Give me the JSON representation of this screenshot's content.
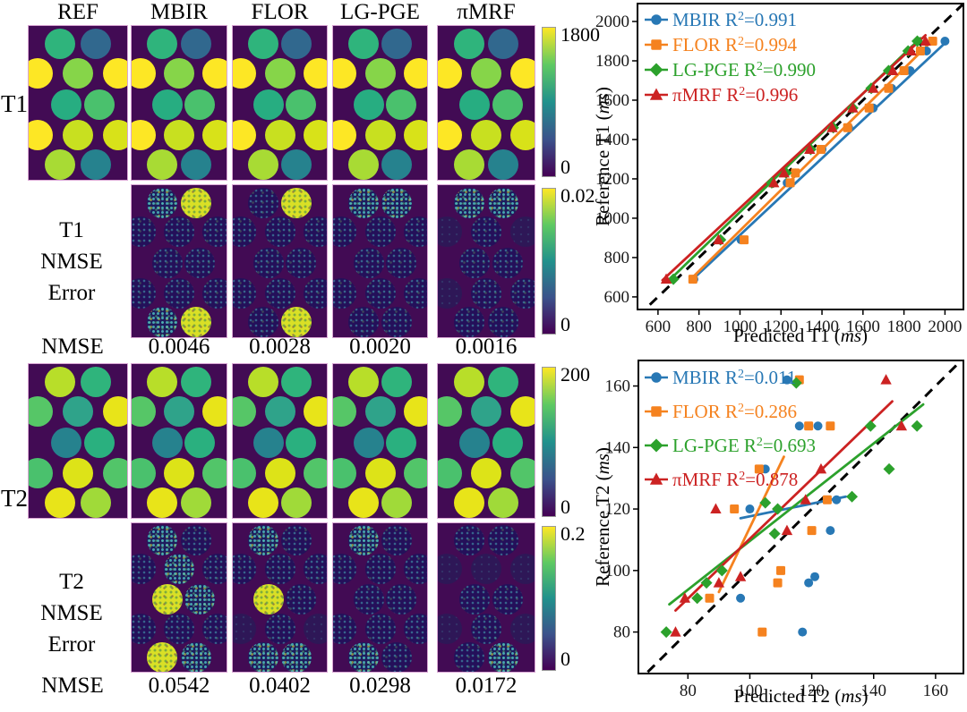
{
  "figure": {
    "col_headers": [
      "REF",
      "MBIR",
      "FLOR",
      "LG-PGE",
      "πMRF"
    ],
    "row_labels": {
      "t1": "T1",
      "t2": "T2",
      "nmse": "NMSE",
      "t1_err": [
        "T1",
        "NMSE",
        "Error"
      ],
      "t2_err": [
        "T2",
        "NMSE",
        "Error"
      ]
    },
    "t1_maps": {
      "colorbar": {
        "max": "1800",
        "min": "0"
      },
      "vial_colors": [
        "#2fb47c",
        "#31688e",
        "#fde725",
        "#86d549",
        "#fde725",
        "#27ad81",
        "#4ac16d",
        "#fde725",
        "#c8e020",
        "#d8e219",
        "#a8db34",
        "#26828e"
      ]
    },
    "t1_error": {
      "colorbar": {
        "max": "0.02",
        "min": "0"
      },
      "levels": {
        "MBIR": [
          2,
          3,
          1,
          1,
          1,
          1,
          1,
          1,
          1,
          1,
          2,
          3
        ],
        "FLOR": [
          1,
          3,
          1,
          1,
          1,
          1,
          1,
          1,
          1,
          1,
          1,
          3
        ],
        "LG-PGE": [
          2,
          2,
          1,
          1,
          1,
          1,
          1,
          1,
          1,
          1,
          1,
          1
        ],
        "πMRF": [
          2,
          2,
          0,
          1,
          0,
          1,
          1,
          0,
          1,
          1,
          1,
          1
        ]
      }
    },
    "t1_nmse_values": [
      "0.0046",
      "0.0028",
      "0.0020",
      "0.0016"
    ],
    "t2_maps": {
      "colorbar": {
        "max": "200",
        "min": "0"
      },
      "vial_colors": [
        "#b8de29",
        "#2fb47c",
        "#56c667",
        "#2fa38a",
        "#e8e419",
        "#26828e",
        "#2ab07f",
        "#4ac16d",
        "#dde318",
        "#52c569",
        "#e8e419",
        "#a0da39"
      ]
    },
    "t2_error": {
      "colorbar": {
        "max": "0.2",
        "min": "0"
      },
      "levels": {
        "MBIR": [
          2,
          1,
          1,
          2,
          1,
          3,
          2,
          1,
          1,
          1,
          3,
          2
        ],
        "FLOR": [
          2,
          1,
          1,
          1,
          1,
          3,
          1,
          0,
          1,
          0,
          2,
          2
        ],
        "LG-PGE": [
          2,
          1,
          1,
          1,
          1,
          1,
          1,
          1,
          1,
          1,
          2,
          1
        ],
        "πMRF": [
          1,
          1,
          0,
          0,
          0,
          1,
          1,
          0,
          1,
          0,
          1,
          2
        ]
      }
    },
    "t2_nmse_values": [
      "0.0542",
      "0.0402",
      "0.0298",
      "0.0172"
    ]
  },
  "chart_data": [
    {
      "type": "scatter",
      "title": "",
      "xlabel": "Predicted T1",
      "ylabel": "Reference T1",
      "unit": "ms",
      "xlim": [
        500,
        2090
      ],
      "ylim": [
        536,
        2091
      ],
      "xticks": [
        600,
        800,
        1000,
        1200,
        1400,
        1600,
        1800,
        2000
      ],
      "yticks": [
        600,
        800,
        1000,
        1200,
        1400,
        1600,
        1800,
        2000
      ],
      "grid": false,
      "legend_position": "upper left",
      "identity_line": {
        "start": [
          560,
          560
        ],
        "end": [
          2085,
          2085
        ],
        "style": "dashed",
        "color": "#000000"
      },
      "series": [
        {
          "name": "MBIR",
          "r2": "0.991",
          "marker": "circle",
          "color": "#2878b5",
          "points": [
            [
              775,
              690
            ],
            [
              1005,
              890
            ],
            [
              1230,
              1180
            ],
            [
              1270,
              1230
            ],
            [
              1400,
              1350
            ],
            [
              1530,
              1460
            ],
            [
              1650,
              1560
            ],
            [
              1740,
              1660
            ],
            [
              1830,
              1750
            ],
            [
              1910,
              1850
            ],
            [
              2000,
              1900
            ]
          ],
          "fit_line": [
            [
              770,
              690
            ],
            [
              2010,
              1900
            ]
          ]
        },
        {
          "name": "FLOR",
          "r2": "0.994",
          "marker": "square",
          "color": "#f5821f",
          "points": [
            [
              770,
              690
            ],
            [
              1020,
              890
            ],
            [
              1245,
              1180
            ],
            [
              1270,
              1230
            ],
            [
              1395,
              1350
            ],
            [
              1525,
              1460
            ],
            [
              1630,
              1560
            ],
            [
              1725,
              1660
            ],
            [
              1800,
              1750
            ],
            [
              1880,
              1850
            ],
            [
              1940,
              1900
            ]
          ],
          "fit_line": [
            [
              755,
              685
            ],
            [
              1950,
              1915
            ]
          ]
        },
        {
          "name": "LG-PGE",
          "r2": "0.990",
          "marker": "diamond",
          "color": "#2ca12c",
          "points": [
            [
              675,
              690
            ],
            [
              905,
              890
            ],
            [
              1155,
              1180
            ],
            [
              1225,
              1230
            ],
            [
              1345,
              1350
            ],
            [
              1455,
              1460
            ],
            [
              1550,
              1560
            ],
            [
              1640,
              1660
            ],
            [
              1725,
              1750
            ],
            [
              1820,
              1850
            ],
            [
              1865,
              1900
            ]
          ],
          "fit_line": [
            [
              650,
              680
            ],
            [
              1880,
              1915
            ]
          ]
        },
        {
          "name": "πMRF",
          "r2": "0.996",
          "marker": "triangle",
          "color": "#cc2222",
          "points": [
            [
              640,
              690
            ],
            [
              895,
              890
            ],
            [
              1165,
              1180
            ],
            [
              1215,
              1230
            ],
            [
              1340,
              1350
            ],
            [
              1450,
              1460
            ],
            [
              1550,
              1560
            ],
            [
              1650,
              1660
            ],
            [
              1745,
              1750
            ],
            [
              1835,
              1850
            ],
            [
              1905,
              1900
            ]
          ],
          "fit_line": [
            [
              622,
              685
            ],
            [
              1905,
              1930
            ]
          ]
        }
      ]
    },
    {
      "type": "scatter",
      "title": "",
      "xlabel": "Predicted T2",
      "ylabel": "Reference T2",
      "unit": "ms",
      "xlim": [
        64,
        169
      ],
      "ylim": [
        66.5,
        168.3
      ],
      "xticks": [
        80,
        100,
        120,
        140,
        160
      ],
      "yticks": [
        80,
        100,
        120,
        140,
        160
      ],
      "grid": false,
      "legend_position": "upper left",
      "identity_line": {
        "start": [
          67,
          67
        ],
        "end": [
          168,
          168
        ],
        "style": "dashed",
        "color": "#000000"
      },
      "series": [
        {
          "name": "MBIR",
          "r2": "0.011",
          "marker": "circle",
          "color": "#2878b5",
          "points": [
            [
              112,
              162
            ],
            [
              116,
              147
            ],
            [
              122,
              147
            ],
            [
              105,
              133
            ],
            [
              128,
              123
            ],
            [
              126,
              113
            ],
            [
              100,
              120
            ],
            [
              121,
              98
            ],
            [
              119,
              96
            ],
            [
              97,
              91
            ],
            [
              117,
              80
            ]
          ],
          "fit_line": [
            [
              97,
              117
            ],
            [
              131,
              124
            ]
          ]
        },
        {
          "name": "FLOR",
          "r2": "0.286",
          "marker": "square",
          "color": "#f5821f",
          "points": [
            [
              116,
              162
            ],
            [
              119,
              147
            ],
            [
              126,
              147
            ],
            [
              103,
              133
            ],
            [
              125,
              123
            ],
            [
              120,
              113
            ],
            [
              95,
              120
            ],
            [
              110,
              100
            ],
            [
              109,
              96
            ],
            [
              87,
              91
            ],
            [
              104,
              80
            ]
          ],
          "fit_line": [
            [
              90,
              93
            ],
            [
              111,
              137
            ]
          ]
        },
        {
          "name": "LG-PGE",
          "r2": "0.693",
          "marker": "diamond",
          "color": "#2ca12c",
          "points": [
            [
              115,
              161
            ],
            [
              139,
              147
            ],
            [
              154,
              147
            ],
            [
              145,
              133
            ],
            [
              133,
              124
            ],
            [
              105,
              122
            ],
            [
              109,
              120
            ],
            [
              108,
              112
            ],
            [
              91,
              100
            ],
            [
              86,
              96
            ],
            [
              83,
              91
            ],
            [
              73,
              80
            ]
          ],
          "fit_line": [
            [
              74,
              89
            ],
            [
              156,
              154
            ]
          ]
        },
        {
          "name": "πMRF",
          "r2": "0.878",
          "marker": "triangle",
          "color": "#cc2222",
          "points": [
            [
              144,
              162
            ],
            [
              149,
              147
            ],
            [
              123,
              133
            ],
            [
              118,
              123
            ],
            [
              89,
              120
            ],
            [
              112,
              113
            ],
            [
              97,
              98
            ],
            [
              90,
              96
            ],
            [
              79,
              91
            ],
            [
              76,
              80
            ]
          ],
          "fit_line": [
            [
              76,
              87
            ],
            [
              146,
              155
            ]
          ]
        }
      ]
    }
  ]
}
